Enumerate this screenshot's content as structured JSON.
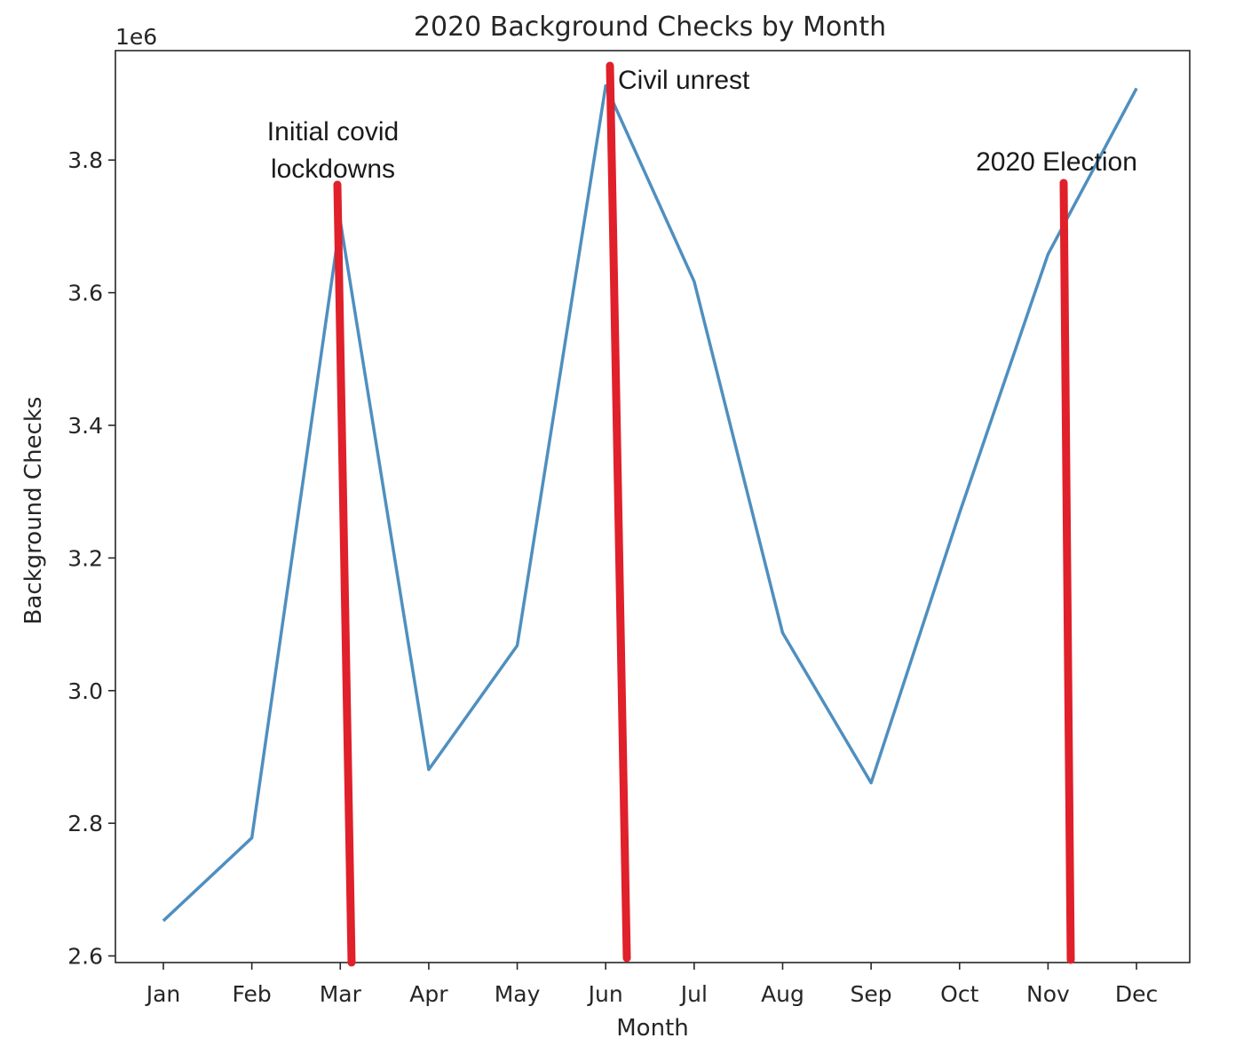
{
  "chart_data": {
    "type": "line",
    "title": "2020 Background Checks by Month",
    "xlabel": "Month",
    "ylabel": "Background Checks",
    "y_multiplier_label": "1e6",
    "categories": [
      "Jan",
      "Feb",
      "Mar",
      "Apr",
      "May",
      "Jun",
      "Jul",
      "Aug",
      "Sep",
      "Oct",
      "Nov",
      "Dec"
    ],
    "values": [
      2.653,
      2.778,
      3.708,
      2.881,
      3.068,
      3.912,
      3.617,
      3.087,
      2.861,
      3.268,
      3.658,
      3.908
    ],
    "yticks": [
      "2.6",
      "2.8",
      "3.0",
      "3.2",
      "3.4",
      "3.6",
      "3.8"
    ],
    "ylim": [
      2.59,
      3.965
    ],
    "grid": false,
    "line_color": "#4f8fbf",
    "marker_color": "#e0202a",
    "annotations": [
      {
        "lines": [
          "Initial covid",
          "lockdowns"
        ],
        "month": "Mar"
      },
      {
        "lines": [
          "Civil unrest"
        ],
        "month": "Jun"
      },
      {
        "lines": [
          "2020 Election"
        ],
        "month": "Nov"
      }
    ]
  }
}
